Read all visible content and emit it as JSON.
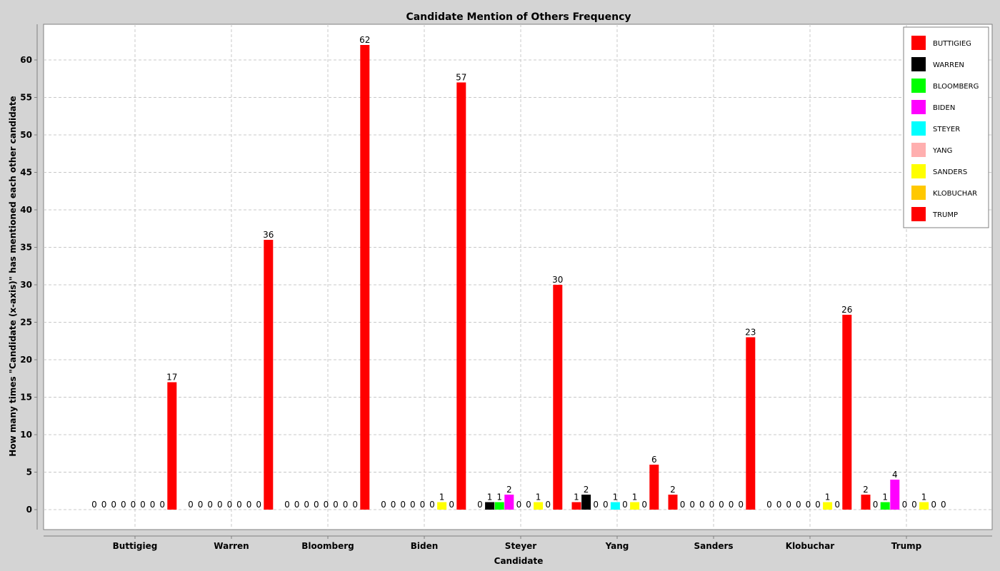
{
  "chart_data": {
    "type": "bar",
    "title": "Candidate Mention of Others Frequency",
    "xlabel": "Candidate",
    "ylabel": "How many times \"Candidate (x-axis)\" has mentioned each other candidate",
    "ylim": [
      -3,
      65
    ],
    "yticks": [
      0,
      5,
      10,
      15,
      20,
      25,
      30,
      35,
      40,
      45,
      50,
      55,
      60
    ],
    "grid": true,
    "legend_position": "top-right",
    "categories": [
      "Buttigieg",
      "Warren",
      "Bloomberg",
      "Biden",
      "Steyer",
      "Yang",
      "Sanders",
      "Klobuchar",
      "Trump"
    ],
    "series": [
      {
        "name": "BUTTIGIEG",
        "color": "#ff0000",
        "values": [
          0,
          0,
          0,
          0,
          0,
          1,
          2,
          0,
          2
        ]
      },
      {
        "name": "WARREN",
        "color": "#000000",
        "values": [
          0,
          0,
          0,
          0,
          1,
          2,
          0,
          0,
          0
        ]
      },
      {
        "name": "BLOOMBERG",
        "color": "#00ff00",
        "values": [
          0,
          0,
          0,
          0,
          1,
          0,
          0,
          0,
          1
        ]
      },
      {
        "name": "BIDEN",
        "color": "#ff00ff",
        "values": [
          0,
          0,
          0,
          0,
          2,
          0,
          0,
          0,
          4
        ]
      },
      {
        "name": "STEYER",
        "color": "#00ffff",
        "values": [
          0,
          0,
          0,
          0,
          0,
          1,
          0,
          0,
          0
        ]
      },
      {
        "name": "YANG",
        "color": "#ffafaf",
        "values": [
          0,
          0,
          0,
          0,
          0,
          0,
          0,
          0,
          0
        ]
      },
      {
        "name": "SANDERS",
        "color": "#ffff00",
        "values": [
          0,
          0,
          0,
          1,
          1,
          1,
          0,
          1,
          1
        ]
      },
      {
        "name": "KLOBUCHAR",
        "color": "#ffc800",
        "values": [
          0,
          0,
          0,
          0,
          0,
          0,
          0,
          0,
          0
        ]
      },
      {
        "name": "TRUMP",
        "color": "#ff0000",
        "values": [
          17,
          36,
          62,
          57,
          30,
          6,
          23,
          26,
          0
        ]
      }
    ]
  }
}
